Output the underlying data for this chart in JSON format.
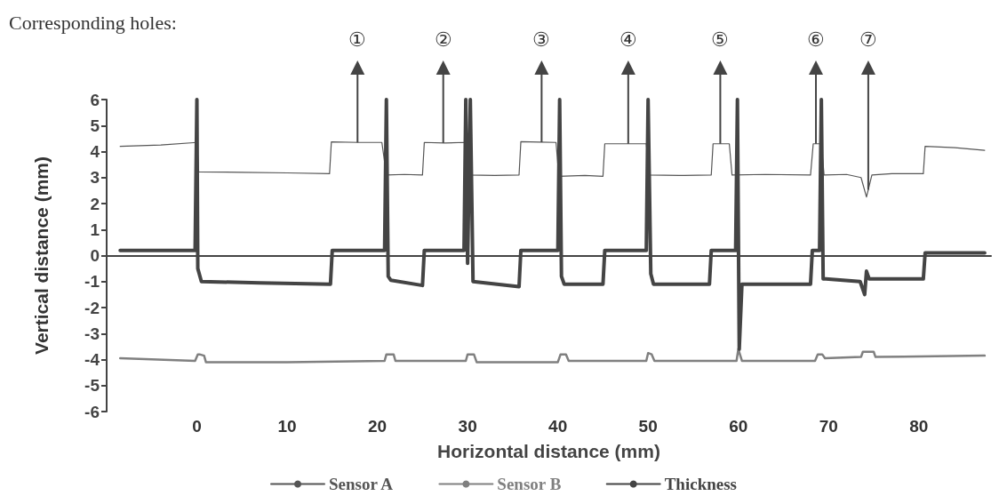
{
  "chart_data": {
    "type": "line",
    "xlabel": "Horizontal distance (mm)",
    "ylabel": "Vertical distance (mm)",
    "xlim": [
      -10,
      88
    ],
    "xticks": [
      0,
      10,
      20,
      30,
      40,
      50,
      60,
      70,
      80
    ],
    "ylim": [
      -6,
      6
    ],
    "yticks": [
      -6,
      -5,
      -4,
      -3,
      -2,
      -1,
      0,
      1,
      2,
      3,
      4,
      5,
      6
    ],
    "legend": "bottom",
    "line_style": "solid",
    "annotations": [
      "Corresponding holes:",
      {
        "text": "①",
        "x": 17.8,
        "y": 4.35
      },
      {
        "text": "②",
        "x": 27.3,
        "y": 4.33
      },
      {
        "text": "③",
        "x": 38.2,
        "y": 4.36
      },
      {
        "text": "④",
        "x": 47.8,
        "y": 4.3
      },
      {
        "text": "⑤",
        "x": 58,
        "y": 4.3
      },
      {
        "text": "⑥",
        "x": 68.6,
        "y": 4.3
      },
      {
        "text": "⑦",
        "x": 74.4,
        "y": 2.53
      }
    ],
    "series": [
      {
        "name": "Sensor A",
        "color": "#555555",
        "x": [
          -8.5,
          -4,
          0,
          0.2,
          5,
          10,
          14.7,
          14.9,
          18,
          20.5,
          21,
          23,
          25,
          25.2,
          27.5,
          29.7,
          30,
          33,
          35.7,
          35.9,
          38,
          39.8,
          40.1,
          43,
          45,
          45.2,
          47.5,
          49.8,
          50.1,
          54,
          57,
          57.2,
          59,
          59.3,
          63,
          68,
          68.3,
          69.2,
          69.5,
          72,
          73.6,
          74.2,
          74.8,
          77,
          80.5,
          80.7,
          84,
          87.3
        ],
        "values": [
          4.2,
          4.25,
          4.35,
          3.22,
          3.2,
          3.18,
          3.15,
          4.37,
          4.35,
          4.35,
          3.1,
          3.12,
          3.1,
          4.35,
          4.33,
          4.35,
          3.1,
          3.08,
          3.1,
          4.38,
          4.36,
          4.35,
          3.05,
          3.08,
          3.05,
          4.3,
          4.3,
          4.3,
          3.1,
          3.08,
          3.1,
          4.3,
          4.3,
          3.1,
          3.12,
          3.1,
          4.3,
          4.3,
          3.1,
          3.12,
          3.0,
          2.25,
          3.1,
          3.15,
          3.15,
          4.2,
          4.15,
          4.05
        ]
      },
      {
        "name": "Sensor B",
        "color": "#808080",
        "x": [
          -8.5,
          -0.2,
          0.1,
          0.3,
          0.8,
          1,
          10,
          20.8,
          21,
          21.8,
          22,
          29.8,
          30,
          30.7,
          31,
          40,
          40.3,
          40.9,
          41.2,
          49.8,
          50,
          50.4,
          50.7,
          59.8,
          60,
          60.4,
          68.5,
          68.8,
          69.3,
          69.6,
          73.6,
          73.8,
          75,
          75.2,
          87.3
        ],
        "values": [
          -3.95,
          -4.05,
          -3.8,
          -3.8,
          -3.85,
          -4.1,
          -4.1,
          -4.05,
          -3.8,
          -3.8,
          -4.05,
          -4.05,
          -3.8,
          -3.8,
          -4.1,
          -4.1,
          -3.8,
          -3.8,
          -4.05,
          -4.05,
          -3.75,
          -3.8,
          -4.05,
          -4.05,
          -3.6,
          -4.05,
          -4.05,
          -3.8,
          -3.8,
          -3.95,
          -3.9,
          -3.7,
          -3.7,
          -3.9,
          -3.85
        ]
      },
      {
        "name": "Thickness",
        "color": "#444444",
        "x": [
          -8.5,
          -0.2,
          0,
          0.1,
          0.5,
          7,
          14.8,
          15,
          20.8,
          21,
          21.2,
          21.5,
          25,
          25.2,
          29.6,
          29.8,
          30,
          30.3,
          30.6,
          35.7,
          35.9,
          40,
          40.2,
          40.4,
          40.7,
          45,
          45.2,
          49.8,
          50,
          50.3,
          50.6,
          56.8,
          57,
          59.7,
          59.9,
          60.1,
          60.4,
          68,
          68.2,
          69,
          69.2,
          69.4,
          69.7,
          73.5,
          74,
          74.2,
          74.5,
          80.5,
          80.7,
          87.3
        ],
        "values": [
          0.2,
          0.2,
          6,
          -0.5,
          -1.0,
          -1.05,
          -1.1,
          0.2,
          0.2,
          6,
          -0.8,
          -0.95,
          -1.15,
          0.2,
          0.2,
          6,
          -0.3,
          6,
          -1.0,
          -1.2,
          0.2,
          0.2,
          6,
          -0.8,
          -1.1,
          -1.1,
          0.2,
          0.2,
          6,
          -0.7,
          -1.1,
          -1.1,
          0.2,
          0.2,
          6,
          -3.6,
          -1.1,
          -1.1,
          0.2,
          0.2,
          6,
          -0.9,
          -0.9,
          -1.0,
          -1.5,
          -0.6,
          -0.9,
          -0.9,
          0.1,
          0.1
        ]
      }
    ]
  }
}
